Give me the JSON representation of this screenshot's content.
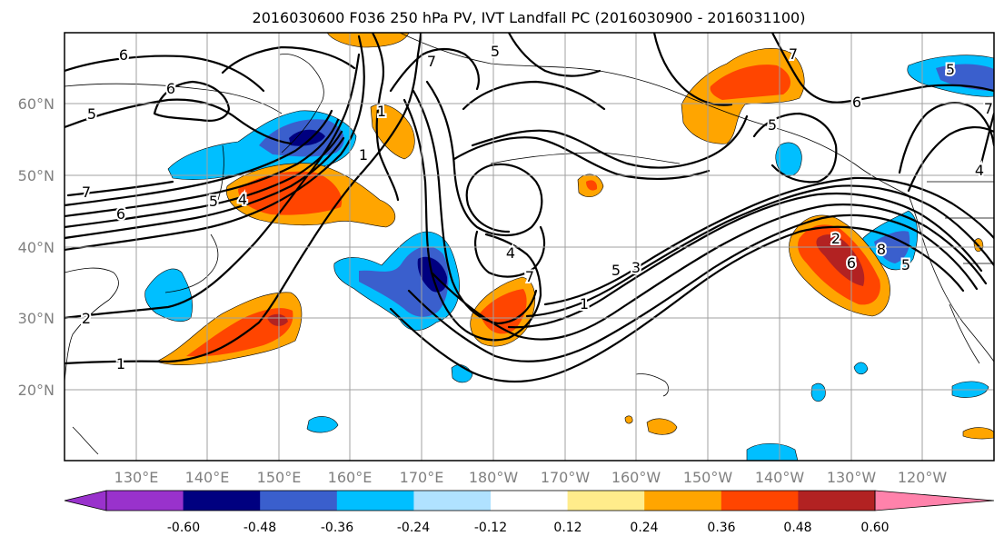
{
  "title": "2016030600 F036 250 hPa PV, IVT Landfall PC (2016030900 - 2016031100)",
  "lat_labels": [
    "60°N",
    "50°N",
    "40°N",
    "30°N",
    "20°N"
  ],
  "lon_labels": [
    "130°E",
    "140°E",
    "150°E",
    "160°E",
    "170°E",
    "180°W",
    "170°W",
    "160°W",
    "150°W",
    "140°W",
    "130°W",
    "120°W"
  ],
  "colorbar": {
    "colors": [
      "#9932cc",
      "#000080",
      "#3a5fcd",
      "#00bfff",
      "#b0e2ff",
      "#ffffff",
      "#ffec8b",
      "#ffa500",
      "#ff4500",
      "#b22222",
      "#ff82ab"
    ],
    "tick_labels": [
      "-0.60",
      "-0.48",
      "-0.36",
      "-0.24",
      "-0.12",
      "0.12",
      "0.24",
      "0.36",
      "0.48",
      "0.60"
    ]
  },
  "contour_labels": [
    "6",
    "6",
    "5",
    "7",
    "6",
    "5",
    "4",
    "2",
    "1",
    "1",
    "7",
    "1",
    "4",
    "7",
    "1",
    "5",
    "3",
    "7",
    "5",
    "6",
    "5",
    "2",
    "6",
    "8",
    "5",
    "4",
    "7",
    "5"
  ]
}
